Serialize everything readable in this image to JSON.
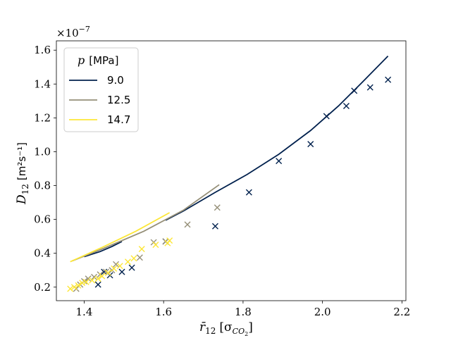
{
  "chart_data": {
    "type": "line+scatter",
    "xlabel": "r̄₁₂ [σ_CO₂]",
    "xlabel_main": "r̄",
    "xlabel_sub": "12",
    "xlabel_unit": "[σ",
    "xlabel_unit_sub": "CO",
    "xlabel_unit_subsub": "2",
    "xlabel_close": "]",
    "ylabel_main": "D",
    "ylabel_sub": "12",
    "ylabel_unit": "[m²s⁻¹]",
    "y_exponent_base": "×10",
    "y_exponent_power": "−7",
    "xlim": [
      1.33,
      2.21
    ],
    "ylim": [
      0.12,
      1.655
    ],
    "x_ticks": [
      1.4,
      1.6,
      1.8,
      2.0,
      2.2
    ],
    "x_tick_labels": [
      "1.4",
      "1.6",
      "1.8",
      "2.0",
      "2.2"
    ],
    "y_ticks": [
      0.2,
      0.4,
      0.6,
      0.8,
      1.0,
      1.2,
      1.4,
      1.6
    ],
    "y_tick_labels": [
      "0.2",
      "0.4",
      "0.6",
      "0.8",
      "1.0",
      "1.2",
      "1.4",
      "1.6"
    ],
    "grid": false,
    "legend": {
      "title_var": "p",
      "title_unit": "[MPa]",
      "placement": "top-left",
      "entries": [
        "9.0",
        "12.5",
        "14.7"
      ]
    },
    "series": [
      {
        "name": "9.0",
        "color": "#00204d",
        "lines": [
          [
            [
              1.4,
              0.38
            ],
            [
              1.44,
              0.41
            ],
            [
              1.47,
              0.44
            ],
            [
              1.495,
              0.47
            ]
          ],
          [
            [
              1.605,
              0.595
            ],
            [
              1.65,
              0.65
            ],
            [
              1.73,
              0.76
            ],
            [
              1.81,
              0.865
            ],
            [
              1.89,
              0.985
            ],
            [
              1.97,
              1.125
            ],
            [
              2.04,
              1.27
            ],
            [
              2.1,
              1.41
            ],
            [
              2.165,
              1.565
            ]
          ]
        ],
        "markers": [
          [
            1.435,
            0.215
          ],
          [
            1.45,
            0.29
          ],
          [
            1.465,
            0.27
          ],
          [
            1.495,
            0.29
          ],
          [
            1.52,
            0.315
          ],
          [
            1.605,
            0.47
          ],
          [
            1.73,
            0.56
          ],
          [
            1.815,
            0.76
          ],
          [
            1.89,
            0.945
          ],
          [
            1.97,
            1.045
          ],
          [
            2.01,
            1.21
          ],
          [
            2.06,
            1.27
          ],
          [
            2.08,
            1.36
          ],
          [
            2.12,
            1.38
          ],
          [
            2.165,
            1.425
          ]
        ]
      },
      {
        "name": "12.5",
        "color": "#958f78",
        "lines": [
          [
            [
              1.37,
              0.355
            ],
            [
              1.45,
              0.43
            ],
            [
              1.55,
              0.53
            ],
            [
              1.65,
              0.655
            ],
            [
              1.74,
              0.805
            ]
          ]
        ],
        "markers": [
          [
            1.38,
            0.19
          ],
          [
            1.39,
            0.215
          ],
          [
            1.4,
            0.235
          ],
          [
            1.41,
            0.25
          ],
          [
            1.425,
            0.26
          ],
          [
            1.44,
            0.275
          ],
          [
            1.455,
            0.29
          ],
          [
            1.47,
            0.3
          ],
          [
            1.48,
            0.335
          ],
          [
            1.54,
            0.375
          ],
          [
            1.575,
            0.465
          ],
          [
            1.605,
            0.47
          ],
          [
            1.66,
            0.57
          ],
          [
            1.735,
            0.67
          ]
        ]
      },
      {
        "name": "14.7",
        "color": "#fde737",
        "lines": [
          [
            [
              1.365,
              0.35
            ],
            [
              1.45,
              0.44
            ],
            [
              1.53,
              0.53
            ],
            [
              1.615,
              0.64
            ]
          ]
        ],
        "markers": [
          [
            1.365,
            0.19
          ],
          [
            1.375,
            0.2
          ],
          [
            1.385,
            0.21
          ],
          [
            1.395,
            0.225
          ],
          [
            1.405,
            0.23
          ],
          [
            1.42,
            0.24
          ],
          [
            1.435,
            0.25
          ],
          [
            1.445,
            0.265
          ],
          [
            1.46,
            0.285
          ],
          [
            1.475,
            0.31
          ],
          [
            1.49,
            0.325
          ],
          [
            1.51,
            0.35
          ],
          [
            1.525,
            0.37
          ],
          [
            1.545,
            0.425
          ],
          [
            1.58,
            0.45
          ],
          [
            1.61,
            0.46
          ],
          [
            1.615,
            0.475
          ]
        ]
      }
    ]
  }
}
